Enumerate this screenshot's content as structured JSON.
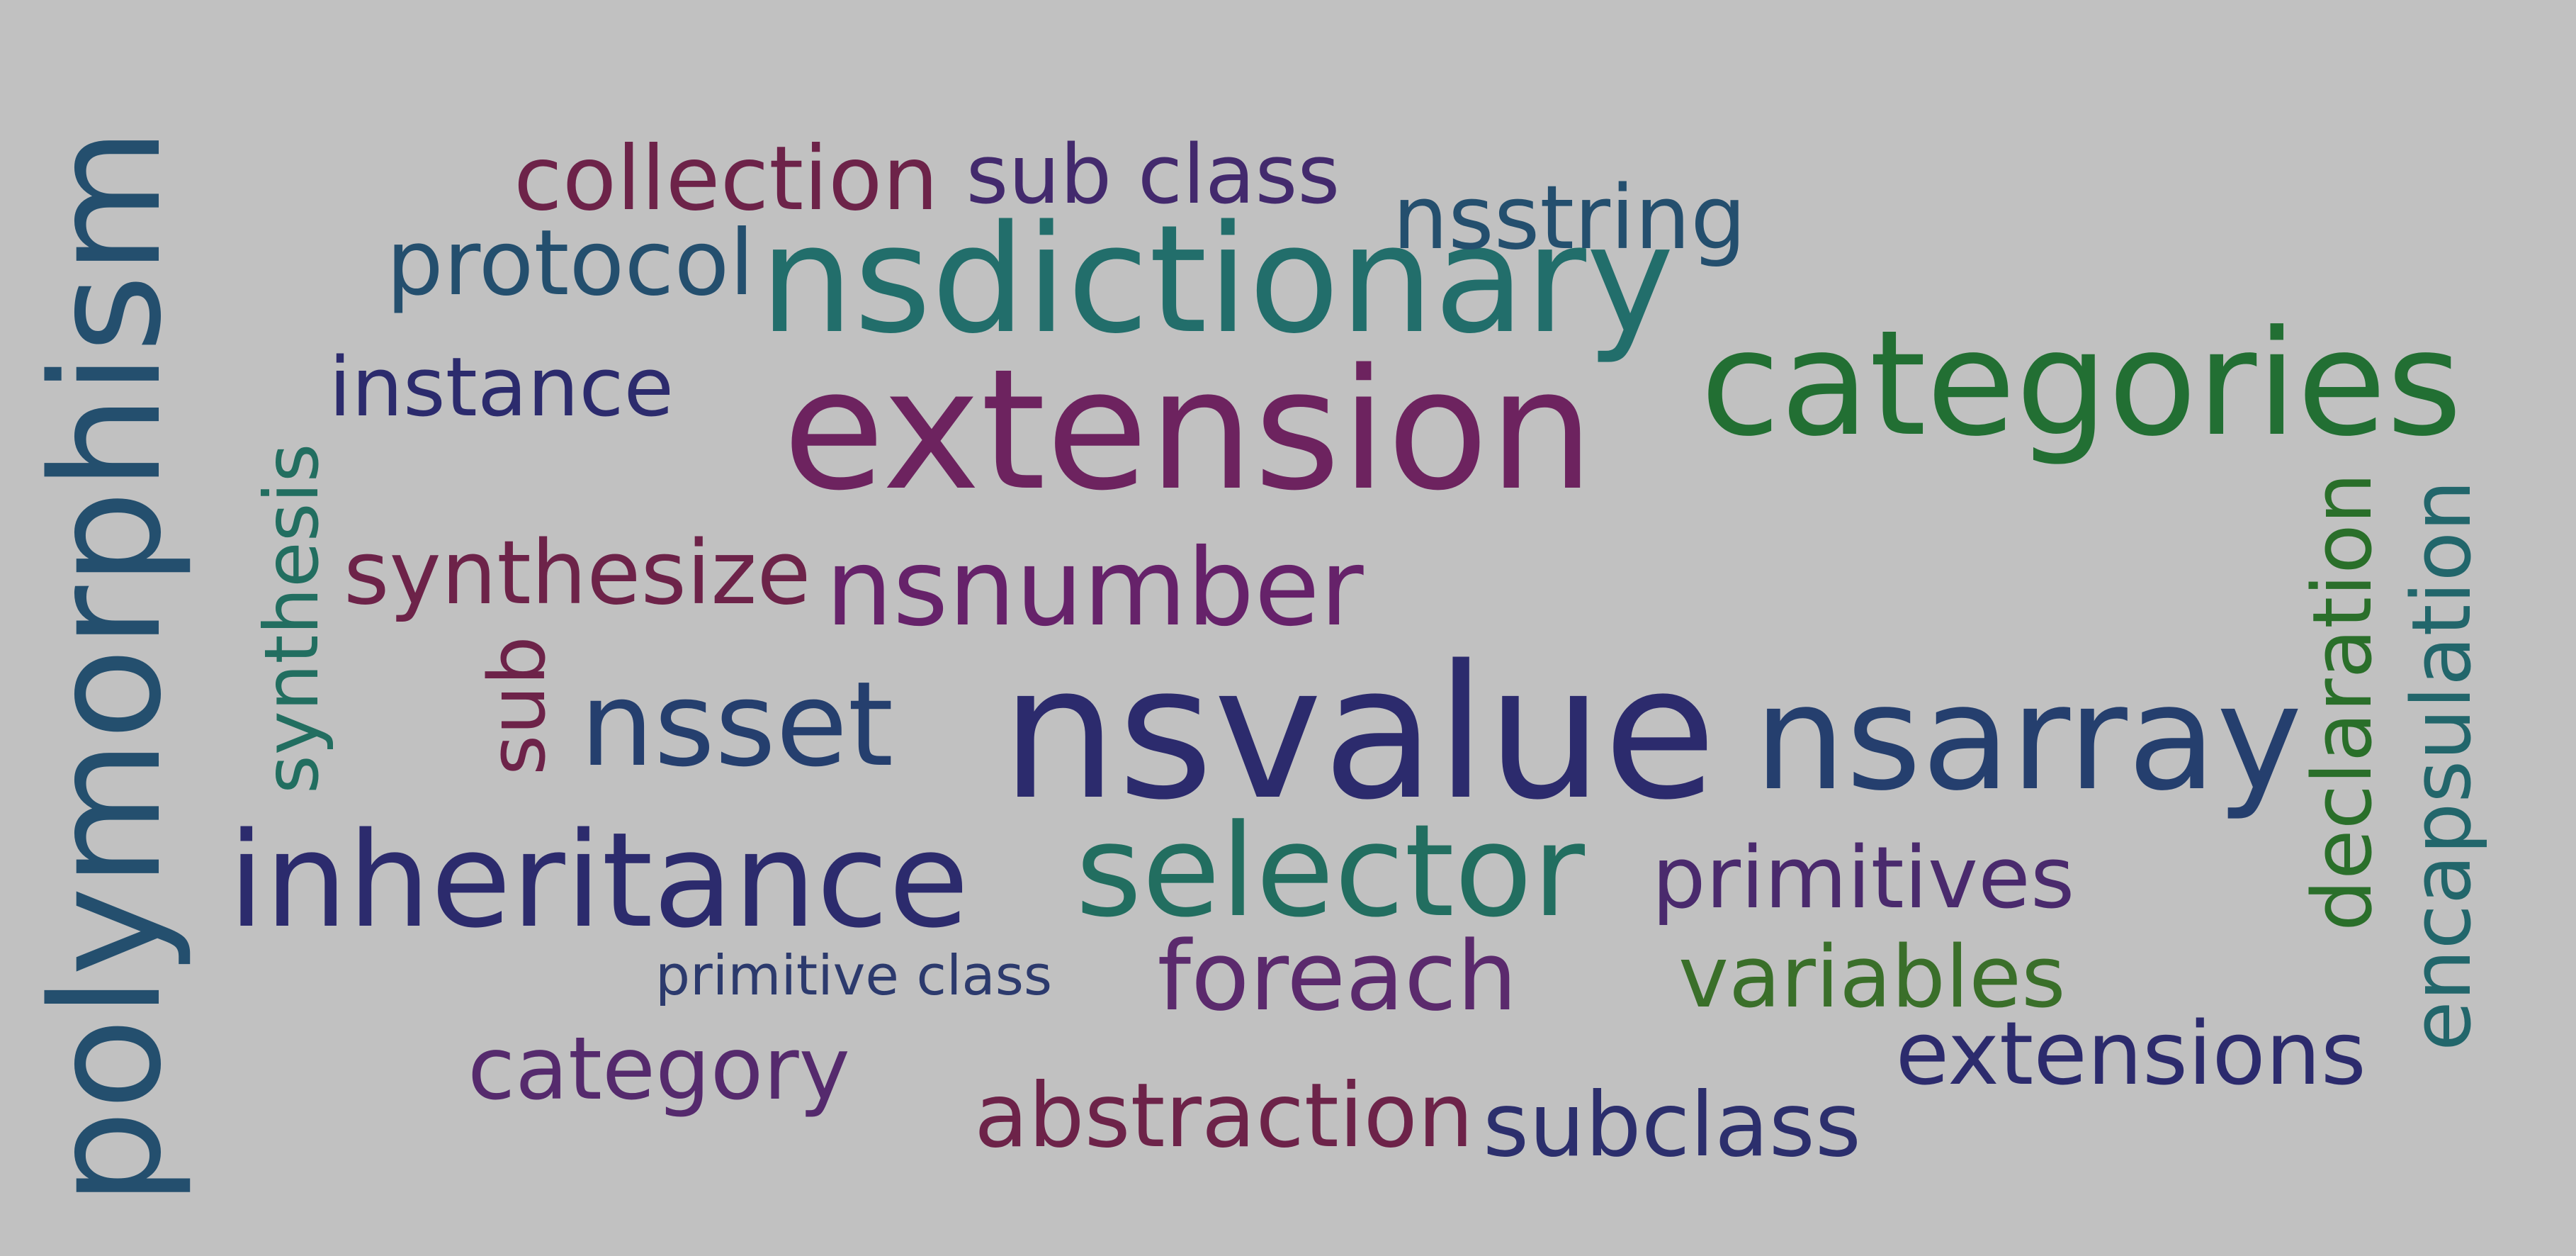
{
  "words": [
    {
      "text": "nsnumber",
      "color": "#66226a",
      "orientation": "horizontal"
    },
    {
      "text": "nsvalue",
      "color": "#2c2b6d",
      "orientation": "horizontal"
    },
    {
      "text": "extension",
      "color": "#6d235f",
      "orientation": "horizontal"
    },
    {
      "text": "polymorphism",
      "color": "#244f6e",
      "orientation": "vertical"
    },
    {
      "text": "inheritance",
      "color": "#2c2b6d",
      "orientation": "horizontal"
    },
    {
      "text": "nsdictionary",
      "color": "#226e6b",
      "orientation": "horizontal"
    },
    {
      "text": "categories",
      "color": "#226f33",
      "orientation": "horizontal"
    },
    {
      "text": "selector",
      "color": "#226e60",
      "orientation": "horizontal"
    },
    {
      "text": "nsarray",
      "color": "#253f6e",
      "orientation": "horizontal"
    },
    {
      "text": "nsset",
      "color": "#253f6e",
      "orientation": "horizontal"
    },
    {
      "text": "encapsulation",
      "color": "#22666b",
      "orientation": "vertical"
    },
    {
      "text": "declaration",
      "color": "#2a6f2a",
      "orientation": "vertical"
    },
    {
      "text": "primitive class",
      "color": "#2c3a6d",
      "orientation": "horizontal"
    },
    {
      "text": "foreach",
      "color": "#5b2a6d",
      "orientation": "horizontal"
    },
    {
      "text": "primitives",
      "color": "#4a2a6d",
      "orientation": "horizontal"
    },
    {
      "text": "protocol",
      "color": "#244f6e",
      "orientation": "horizontal"
    },
    {
      "text": "instance",
      "color": "#2c2b6d",
      "orientation": "horizontal"
    },
    {
      "text": "synthesize",
      "color": "#6d2349",
      "orientation": "horizontal"
    },
    {
      "text": "synthesis",
      "color": "#226e60",
      "orientation": "vertical"
    },
    {
      "text": "collection",
      "color": "#6d2349",
      "orientation": "horizontal"
    },
    {
      "text": "sub class",
      "color": "#432a6d",
      "orientation": "horizontal"
    },
    {
      "text": "nsstring",
      "color": "#244f6e",
      "orientation": "horizontal"
    },
    {
      "text": "variables",
      "color": "#3a6f2a",
      "orientation": "horizontal"
    },
    {
      "text": "extensions",
      "color": "#2c2b6d",
      "orientation": "horizontal"
    },
    {
      "text": "category",
      "color": "#552a6d",
      "orientation": "horizontal"
    },
    {
      "text": "abstraction",
      "color": "#6d2349",
      "orientation": "horizontal"
    },
    {
      "text": "subclass",
      "color": "#2c2f6d",
      "orientation": "horizontal"
    },
    {
      "text": "sub",
      "color": "#6d2349",
      "orientation": "vertical"
    }
  ]
}
